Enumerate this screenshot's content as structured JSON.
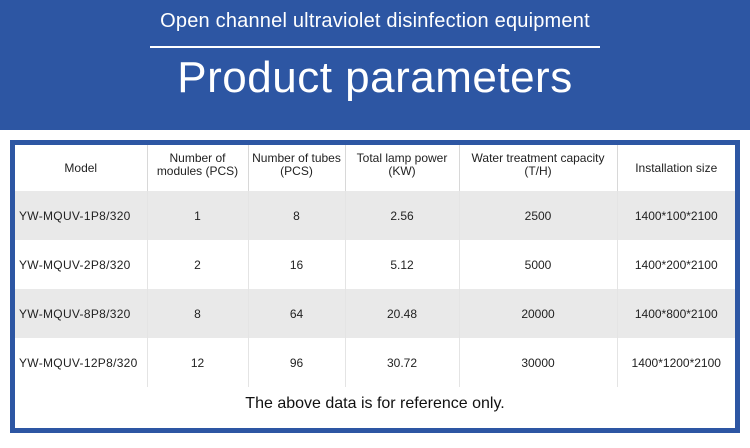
{
  "header": {
    "subtitle": "Open channel ultraviolet disinfection equipment",
    "title": "Product parameters"
  },
  "table": {
    "columns": [
      "Model",
      "Number of modules (PCS)",
      "Number of tubes  (PCS)",
      "Total lamp power (KW)",
      "Water treatment capacity (T/H)",
      "Installation size"
    ],
    "rows": [
      [
        "YW-MQUV-1P8/320",
        "1",
        "8",
        "2.56",
        "2500",
        "1400*100*2100"
      ],
      [
        "YW-MQUV-2P8/320",
        "2",
        "16",
        "5.12",
        "5000",
        "1400*200*2100"
      ],
      [
        "YW-MQUV-8P8/320",
        "8",
        "64",
        "20.48",
        "20000",
        "1400*800*2100"
      ],
      [
        "YW-MQUV-12P8/320",
        "12",
        "96",
        "30.72",
        "30000",
        "1400*1200*2100"
      ]
    ]
  },
  "note": "The above data is for reference only.",
  "colors": {
    "brand_blue": "#2d56a3",
    "row_shade": "#e9e9e9"
  }
}
